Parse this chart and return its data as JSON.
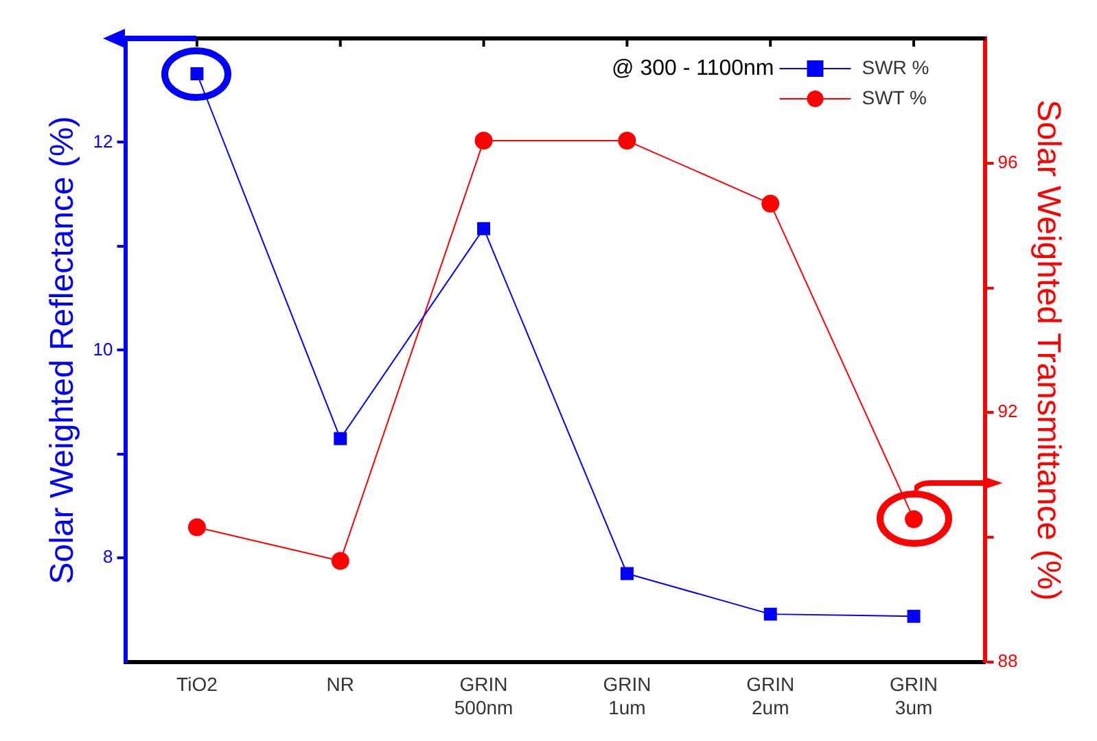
{
  "chart_data": {
    "type": "line",
    "categories": [
      "TiO2",
      "NR",
      "GRIN 500nm",
      "GRIN 1um",
      "GRIN 2um",
      "GRIN 3um"
    ],
    "series": [
      {
        "name": "SWR %",
        "color": "#0000ff",
        "marker": "square",
        "values": [
          12.66,
          9.15,
          11.17,
          7.85,
          7.46,
          7.44
        ]
      },
      {
        "name": "SWT %",
        "color": "#ff0000",
        "marker": "circle",
        "axis": "y2",
        "values": [
          90.16,
          89.62,
          96.36,
          96.36,
          95.35,
          90.29
        ]
      }
    ],
    "ylabel": "Solar Weighted Reflectance (%)",
    "y2label": "Solar Weighted Transmittance (%)",
    "ylim": [
      7,
      13
    ],
    "yticks": [
      8,
      {
        "value": 9,
        "label": null
      },
      10,
      {
        "value": 11,
        "label": null
      },
      12
    ],
    "y2lim": [
      88,
      98
    ],
    "y2ticks": [
      88,
      {
        "value": 90,
        "label": null
      },
      92,
      {
        "value": 94,
        "label": null
      },
      96
    ],
    "annotations": [
      "@ 300 - 1100nm"
    ],
    "legend": "top right",
    "grid": false,
    "line_style": "solid"
  }
}
